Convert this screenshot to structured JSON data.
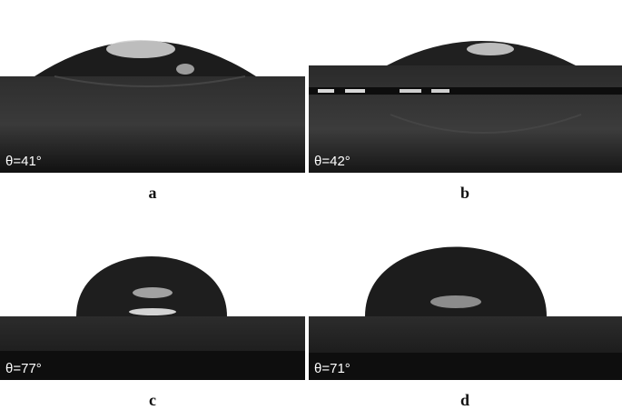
{
  "panels": [
    {
      "id": "a",
      "label": "a",
      "angle": "θ=41°"
    },
    {
      "id": "b",
      "label": "b",
      "angle": "θ=42°"
    },
    {
      "id": "c",
      "label": "c",
      "angle": "θ=77°"
    },
    {
      "id": "d",
      "label": "d",
      "angle": "θ=71°"
    }
  ]
}
